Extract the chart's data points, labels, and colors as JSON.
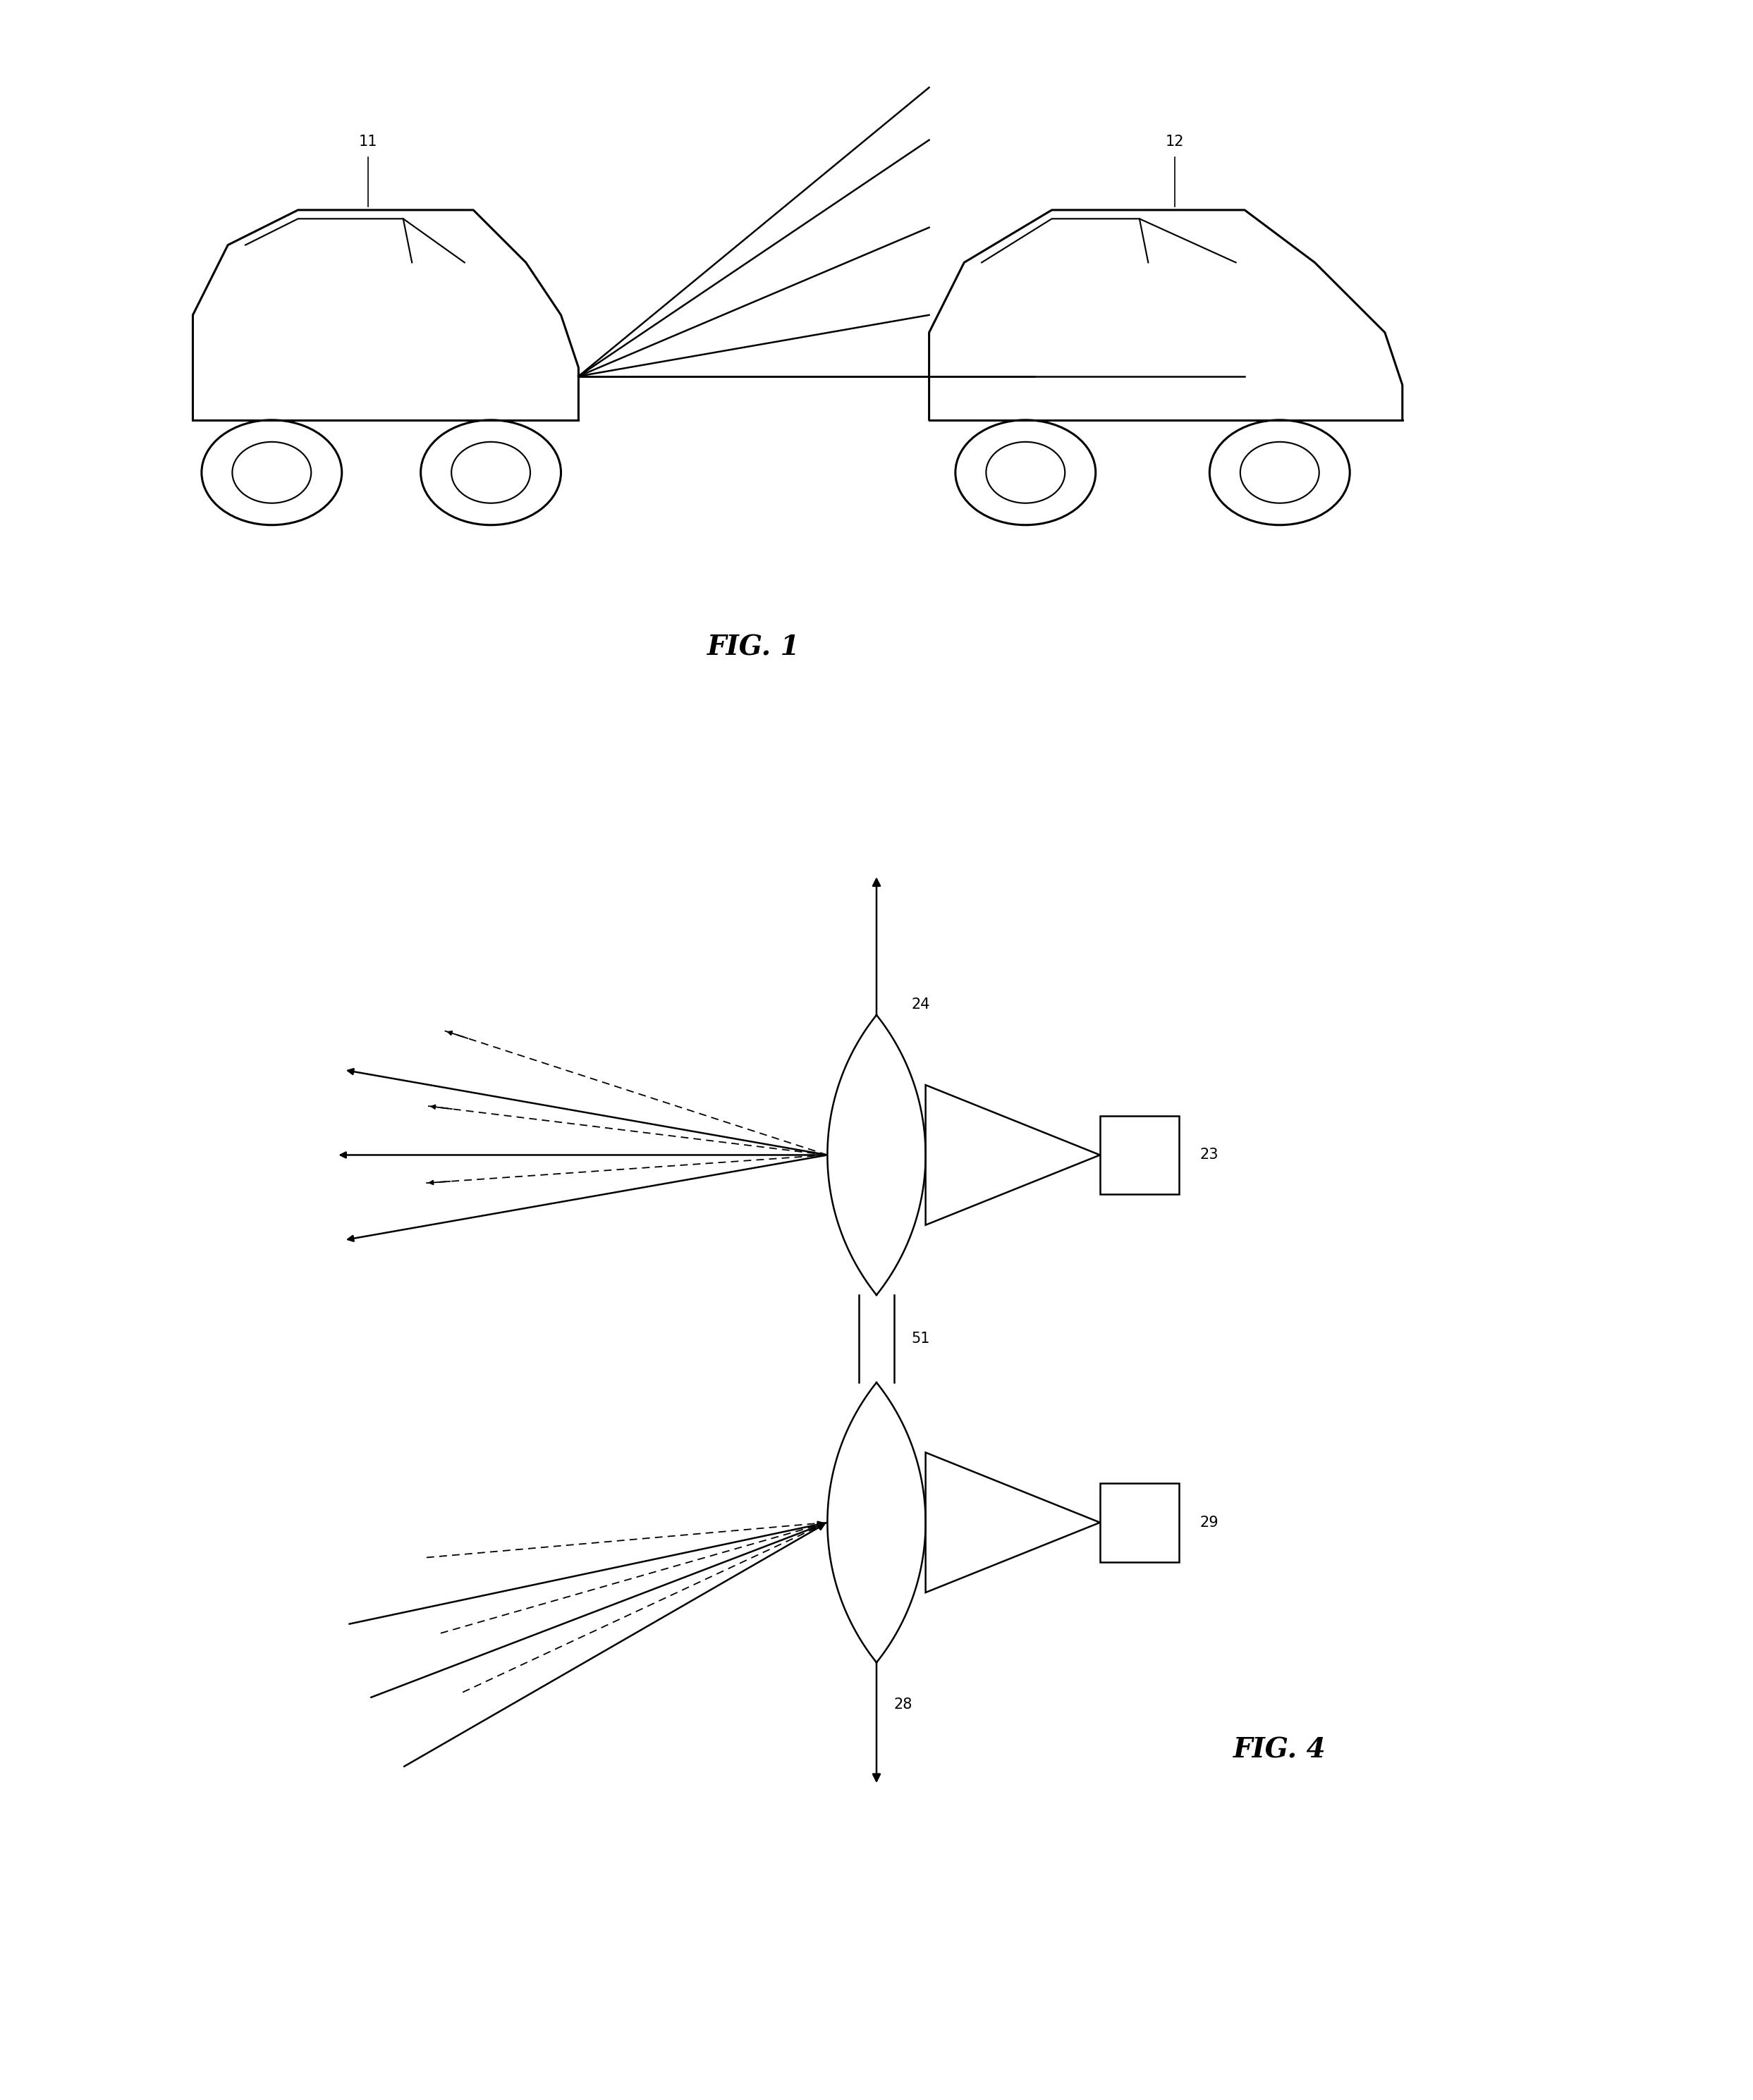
{
  "fig_width": 24.86,
  "fig_height": 29.79,
  "bg_color": "#ffffff",
  "line_color": "#000000",
  "label_11": "11",
  "label_12": "12",
  "label_24": "24",
  "label_23": "23",
  "label_29": "29",
  "label_51": "51",
  "label_28": "28",
  "fig1_title": "FIG. 1",
  "fig4_title": "FIG. 4"
}
